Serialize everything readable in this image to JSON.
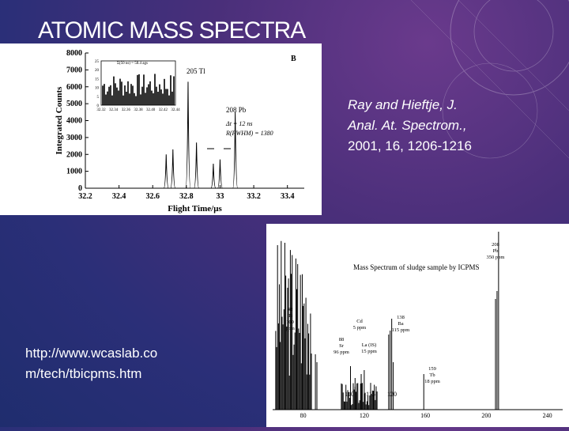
{
  "slide": {
    "title": "ATOMIC MASS SPECTRA",
    "citation": {
      "line1": "Ray and Hieftje, J.",
      "line2": "Anal. At. Spectrom.,",
      "line3": "2001, 16, 1206-1216"
    },
    "url": {
      "line1": "http://www.wcaslab.co",
      "line2": "m/tech/tbicpms.htm"
    }
  },
  "chart_data": [
    {
      "type": "line",
      "panel_label": "B",
      "xlabel": "Flight Time/μs",
      "ylabel": "Integrated Counts",
      "x_ticks": [
        "32.2",
        "32.4",
        "32.6",
        "32.8",
        "33",
        "33.2",
        "33.4"
      ],
      "y_ticks": [
        "0",
        "1000",
        "2000",
        "3000",
        "4000",
        "5000",
        "6000",
        "7000",
        "8000"
      ],
      "xlim": [
        32.2,
        33.5
      ],
      "ylim": [
        0,
        8000
      ],
      "annotations": [
        "205 Tl",
        "208 Pb",
        "Δt = 12 ns",
        "R(FWHM) = 1380"
      ],
      "peaks": [
        {
          "x": 32.68,
          "y": 2000
        },
        {
          "x": 32.72,
          "y": 2300
        },
        {
          "x": 32.81,
          "y": 6300
        },
        {
          "x": 32.86,
          "y": 2700
        },
        {
          "x": 32.96,
          "y": 1450
        },
        {
          "x": 33.0,
          "y": 1700
        },
        {
          "x": 33.09,
          "y": 4500
        }
      ],
      "inset": {
        "label": "Σ(50 ns) = 58.4 ags",
        "y_ticks": [
          "0",
          "5",
          "10",
          "15",
          "20",
          "25"
        ],
        "x_ticks": [
          "32.32",
          "32.34",
          "32.36",
          "32.38",
          "32.40",
          "32.42",
          "32.44"
        ]
      }
    },
    {
      "type": "line",
      "title": "Mass Spectrum of sludge sample by ICPMS",
      "x_ticks": [
        "80",
        "120",
        "160",
        "200",
        "240"
      ],
      "xlim": [
        60,
        250
      ],
      "annotations": [
        {
          "x": 48,
          "text": [
            "48",
            "Ti",
            "100",
            "ppm"
          ]
        },
        {
          "x": 88,
          "text": [
            "88",
            "Sr",
            "96 ppm"
          ]
        },
        {
          "x": 111,
          "text": [
            "Cd",
            "5 ppm"
          ]
        },
        {
          "x": 139,
          "text": [
            "La (IS)",
            "15 ppm"
          ]
        },
        {
          "x": 138,
          "text": [
            "138",
            "Ba",
            "115 ppm"
          ]
        },
        {
          "x": 159,
          "text": [
            "159",
            "Tb",
            "18 ppm"
          ]
        },
        {
          "x": 208,
          "text": [
            "208",
            "Pb",
            "350 ppm"
          ]
        }
      ],
      "inset_ticks": [
        "110",
        "115",
        "120"
      ]
    }
  ]
}
